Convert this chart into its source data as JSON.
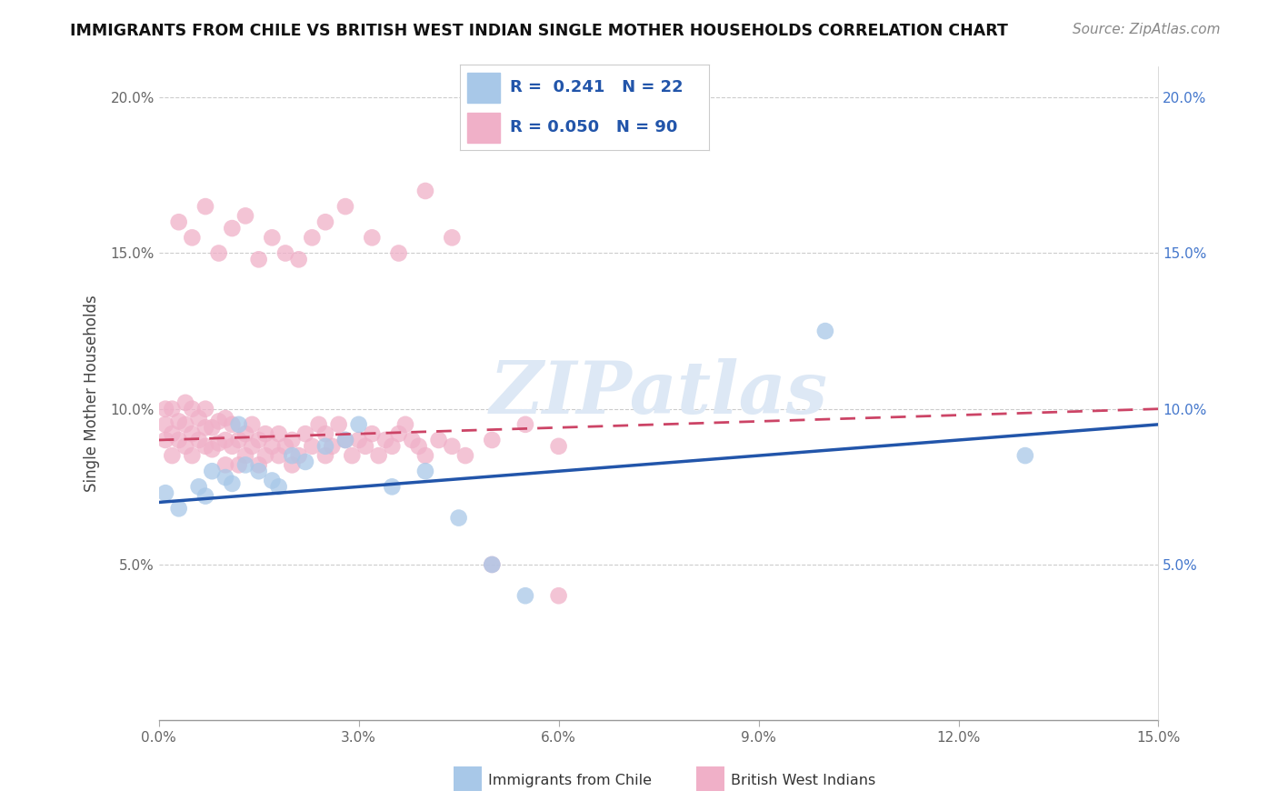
{
  "title": "IMMIGRANTS FROM CHILE VS BRITISH WEST INDIAN SINGLE MOTHER HOUSEHOLDS CORRELATION CHART",
  "source": "Source: ZipAtlas.com",
  "ylabel": "Single Mother Households",
  "xlim": [
    0.0,
    0.15
  ],
  "ylim": [
    0.0,
    0.21
  ],
  "xticks": [
    0.0,
    0.03,
    0.06,
    0.09,
    0.12,
    0.15
  ],
  "yticks": [
    0.0,
    0.05,
    0.1,
    0.15,
    0.2
  ],
  "legend_label_blue": "Immigrants from Chile",
  "legend_label_pink": "British West Indians",
  "blue_color": "#a8c8e8",
  "pink_color": "#f0b0c8",
  "blue_line_color": "#2255aa",
  "pink_line_color": "#cc4466",
  "watermark": "ZIPatlas",
  "blue_scatter_x": [
    0.001,
    0.003,
    0.006,
    0.007,
    0.008,
    0.01,
    0.011,
    0.012,
    0.013,
    0.015,
    0.017,
    0.018,
    0.02,
    0.022,
    0.025,
    0.028,
    0.03,
    0.035,
    0.04,
    0.045,
    0.05,
    0.055,
    0.1,
    0.13
  ],
  "blue_scatter_y": [
    0.073,
    0.068,
    0.075,
    0.072,
    0.08,
    0.078,
    0.076,
    0.095,
    0.082,
    0.08,
    0.077,
    0.075,
    0.085,
    0.083,
    0.088,
    0.09,
    0.095,
    0.075,
    0.08,
    0.065,
    0.05,
    0.04,
    0.125,
    0.085
  ],
  "pink_scatter_x": [
    0.001,
    0.001,
    0.001,
    0.002,
    0.002,
    0.002,
    0.003,
    0.003,
    0.004,
    0.004,
    0.004,
    0.005,
    0.005,
    0.005,
    0.006,
    0.006,
    0.007,
    0.007,
    0.007,
    0.008,
    0.008,
    0.009,
    0.009,
    0.01,
    0.01,
    0.01,
    0.011,
    0.011,
    0.012,
    0.012,
    0.013,
    0.013,
    0.014,
    0.014,
    0.015,
    0.015,
    0.016,
    0.016,
    0.017,
    0.018,
    0.018,
    0.019,
    0.02,
    0.02,
    0.021,
    0.022,
    0.023,
    0.024,
    0.025,
    0.025,
    0.026,
    0.027,
    0.028,
    0.029,
    0.03,
    0.031,
    0.032,
    0.033,
    0.034,
    0.035,
    0.036,
    0.037,
    0.038,
    0.039,
    0.04,
    0.042,
    0.044,
    0.046,
    0.05,
    0.055,
    0.06,
    0.003,
    0.005,
    0.007,
    0.009,
    0.011,
    0.013,
    0.015,
    0.017,
    0.019,
    0.021,
    0.023,
    0.025,
    0.028,
    0.032,
    0.036,
    0.04,
    0.044,
    0.05,
    0.06
  ],
  "pink_scatter_y": [
    0.09,
    0.095,
    0.1,
    0.085,
    0.092,
    0.1,
    0.09,
    0.096,
    0.088,
    0.095,
    0.102,
    0.085,
    0.092,
    0.1,
    0.09,
    0.097,
    0.088,
    0.094,
    0.1,
    0.087,
    0.094,
    0.089,
    0.096,
    0.082,
    0.09,
    0.097,
    0.088,
    0.095,
    0.082,
    0.09,
    0.085,
    0.092,
    0.088,
    0.095,
    0.082,
    0.09,
    0.085,
    0.092,
    0.088,
    0.085,
    0.092,
    0.088,
    0.082,
    0.09,
    0.085,
    0.092,
    0.088,
    0.095,
    0.085,
    0.092,
    0.088,
    0.095,
    0.09,
    0.085,
    0.09,
    0.088,
    0.092,
    0.085,
    0.09,
    0.088,
    0.092,
    0.095,
    0.09,
    0.088,
    0.085,
    0.09,
    0.088,
    0.085,
    0.09,
    0.095,
    0.088,
    0.16,
    0.155,
    0.165,
    0.15,
    0.158,
    0.162,
    0.148,
    0.155,
    0.15,
    0.148,
    0.155,
    0.16,
    0.165,
    0.155,
    0.15,
    0.17,
    0.155,
    0.05,
    0.04
  ]
}
